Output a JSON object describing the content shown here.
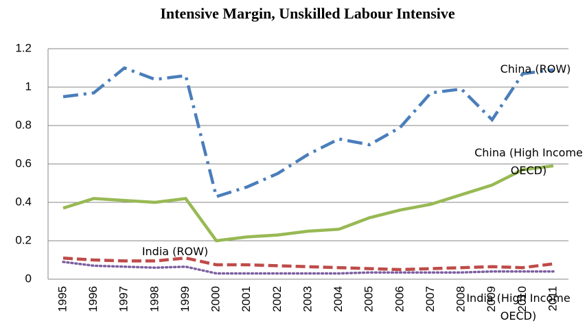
{
  "chart_data": {
    "type": "line",
    "title": "Intensive Margin, Unskilled Labour Intensive",
    "categories": [
      "1995",
      "1996",
      "1997",
      "1998",
      "1999",
      "2000",
      "2001",
      "2002",
      "2003",
      "2004",
      "2005",
      "2006",
      "2007",
      "2008",
      "2009",
      "2010",
      "2011"
    ],
    "ylim": [
      0,
      1.2
    ],
    "yticks": [
      0,
      0.2,
      0.4,
      0.6,
      0.8,
      1,
      1.2
    ],
    "grid": true,
    "series": [
      {
        "name": "China (ROW)",
        "color": "#4a7ebb",
        "dash": "dashdot",
        "values": [
          0.95,
          0.97,
          1.1,
          1.04,
          1.06,
          0.43,
          0.48,
          0.55,
          0.65,
          0.73,
          0.7,
          0.79,
          0.97,
          0.99,
          0.83,
          1.07,
          1.09
        ]
      },
      {
        "name": "China (High Income OECD)",
        "color": "#98b954",
        "dash": "solid",
        "values": [
          0.37,
          0.42,
          0.41,
          0.4,
          0.42,
          0.2,
          0.22,
          0.23,
          0.25,
          0.26,
          0.32,
          0.36,
          0.39,
          0.44,
          0.49,
          0.57,
          0.59
        ]
      },
      {
        "name": "India (ROW)",
        "color": "#be4b48",
        "dash": "dashed",
        "values": [
          0.11,
          0.1,
          0.095,
          0.095,
          0.11,
          0.075,
          0.075,
          0.07,
          0.065,
          0.06,
          0.055,
          0.05,
          0.055,
          0.06,
          0.065,
          0.06,
          0.08
        ]
      },
      {
        "name": "India (High Income OECD)",
        "color": "#7d60a0",
        "dash": "dotted",
        "values": [
          0.09,
          0.07,
          0.065,
          0.06,
          0.065,
          0.03,
          0.03,
          0.03,
          0.03,
          0.03,
          0.035,
          0.035,
          0.035,
          0.035,
          0.04,
          0.04,
          0.04
        ]
      }
    ]
  }
}
